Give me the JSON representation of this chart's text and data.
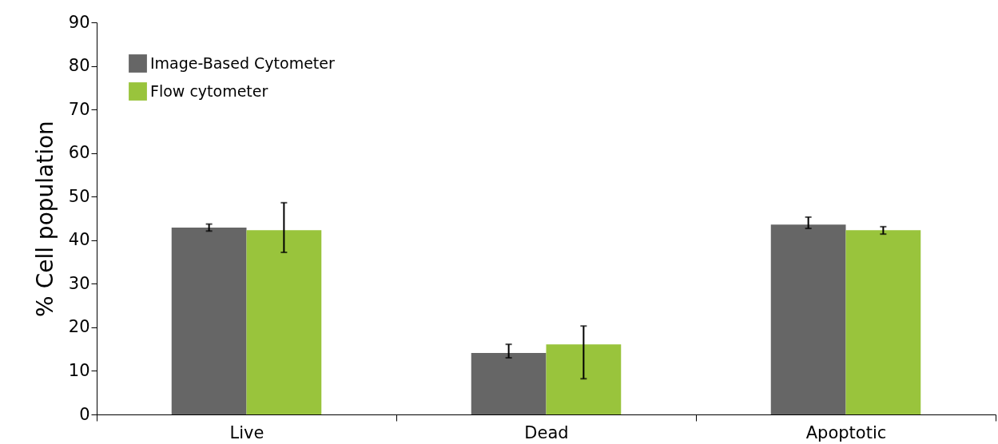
{
  "chart_data": {
    "type": "bar",
    "ylabel": "% Cell population",
    "categories": [
      "Live",
      "Dead",
      "Apoptotic"
    ],
    "series": [
      {
        "name": "Image-Based Cytometer",
        "color": "#666666",
        "values": [
          42.9,
          14.1,
          43.6
        ],
        "errors": [
          [
            42.1,
            43.7
          ],
          [
            13.0,
            16.1
          ],
          [
            42.7,
            45.3
          ]
        ]
      },
      {
        "name": "Flow cytometer",
        "color": "#99c43c",
        "values": [
          42.3,
          16.1,
          42.3
        ],
        "errors": [
          [
            37.2,
            48.6
          ],
          [
            8.2,
            20.3
          ],
          [
            41.4,
            43.1
          ]
        ]
      }
    ],
    "ylim": [
      0,
      90
    ],
    "yticks": [
      0,
      10,
      20,
      30,
      40,
      50,
      60,
      70,
      80,
      90
    ],
    "grid": false,
    "legend": "top left"
  }
}
